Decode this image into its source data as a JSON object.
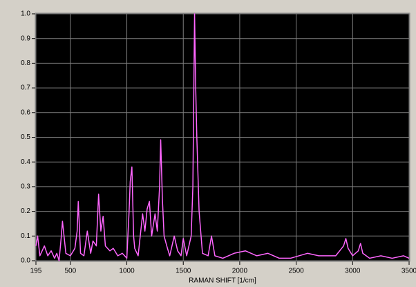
{
  "chart_data": {
    "type": "line",
    "xlabel": "RAMAN SHIFT [1/cm]",
    "color": "#ff66ff",
    "grid": true,
    "xlim": [
      195,
      3500
    ],
    "ylim": [
      0,
      1
    ],
    "xticks": [
      195,
      500,
      1000,
      1500,
      2000,
      2500,
      3000,
      3500
    ],
    "yticks": [
      {
        "value": 0,
        "label": "0.0"
      },
      0.1,
      0.2,
      0.3,
      0.4,
      0.5,
      0.6,
      0.7,
      0.8,
      0.9,
      {
        "value": 1,
        "label": "1.0"
      }
    ],
    "x": [
      195,
      210,
      230,
      270,
      300,
      330,
      360,
      380,
      400,
      420,
      430,
      460,
      500,
      540,
      560,
      570,
      590,
      620,
      650,
      680,
      700,
      730,
      750,
      770,
      790,
      810,
      850,
      880,
      920,
      960,
      1000,
      1020,
      1030,
      1045,
      1060,
      1070,
      1100,
      1140,
      1160,
      1180,
      1200,
      1220,
      1250,
      1270,
      1290,
      1300,
      1315,
      1330,
      1360,
      1380,
      1420,
      1450,
      1480,
      1500,
      1530,
      1570,
      1585,
      1600,
      1610,
      1620,
      1640,
      1670,
      1720,
      1750,
      1780,
      1850,
      1950,
      2050,
      2150,
      2250,
      2350,
      2450,
      2600,
      2700,
      2850,
      2920,
      2940,
      2960,
      3000,
      3050,
      3070,
      3090,
      3150,
      3250,
      3350,
      3450,
      3500
    ],
    "values": [
      0.06,
      0.1,
      0.02,
      0.06,
      0.02,
      0.04,
      0.01,
      0.03,
      0.0,
      0.1,
      0.16,
      0.03,
      0.02,
      0.05,
      0.12,
      0.24,
      0.03,
      0.02,
      0.12,
      0.03,
      0.08,
      0.06,
      0.27,
      0.12,
      0.18,
      0.06,
      0.04,
      0.05,
      0.02,
      0.03,
      0.01,
      0.2,
      0.32,
      0.38,
      0.1,
      0.05,
      0.02,
      0.19,
      0.12,
      0.21,
      0.24,
      0.1,
      0.19,
      0.12,
      0.3,
      0.49,
      0.25,
      0.1,
      0.05,
      0.02,
      0.1,
      0.04,
      0.02,
      0.09,
      0.02,
      0.1,
      0.3,
      1.0,
      0.7,
      0.5,
      0.2,
      0.03,
      0.02,
      0.1,
      0.02,
      0.01,
      0.03,
      0.04,
      0.02,
      0.03,
      0.01,
      0.01,
      0.03,
      0.02,
      0.02,
      0.06,
      0.09,
      0.05,
      0.02,
      0.04,
      0.07,
      0.03,
      0.01,
      0.02,
      0.01,
      0.02,
      0.01
    ]
  }
}
